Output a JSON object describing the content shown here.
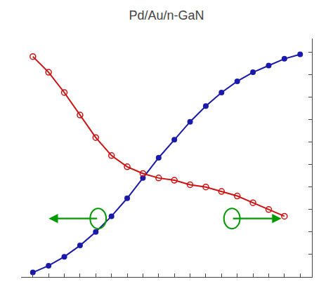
{
  "chart_data": {
    "type": "line",
    "title": "Pd/Au/n-GaN",
    "series": [
      {
        "color": "#1a1aaa",
        "marker": "circle",
        "x": [
          100,
          120,
          140,
          160,
          180,
          200,
          220,
          240,
          260,
          280,
          300,
          320,
          340,
          360,
          380,
          400,
          420,
          440
        ],
        "values": [
          0.02,
          0.05,
          0.09,
          0.14,
          0.2,
          0.27,
          0.35,
          0.44,
          0.53,
          0.61,
          0.69,
          0.76,
          0.82,
          0.87,
          0.91,
          0.94,
          0.97,
          0.99
        ]
      },
      {
        "color": "#cc1111",
        "marker": "circle-open",
        "x": [
          100,
          120,
          140,
          160,
          180,
          200,
          220,
          240,
          260,
          280,
          300,
          320,
          340,
          360,
          380,
          400,
          420
        ],
        "values": [
          0.98,
          0.91,
          0.82,
          0.72,
          0.62,
          0.54,
          0.49,
          0.46,
          0.44,
          0.43,
          0.41,
          0.4,
          0.38,
          0.36,
          0.33,
          0.3,
          0.27
        ]
      }
    ],
    "xlim": [
      85,
      455
    ],
    "xticks": [
      100,
      120,
      140,
      160,
      180,
      200,
      220,
      240,
      260,
      280,
      300,
      320,
      340,
      360,
      380,
      400,
      420,
      440
    ],
    "ylim": [
      0.0,
      1.06
    ],
    "yticks": [
      0,
      0.1,
      0.2,
      0.3,
      0.4,
      0.5,
      0.6,
      0.7,
      0.8,
      0.9,
      1.0
    ],
    "grid": false,
    "tick_labels": false
  }
}
